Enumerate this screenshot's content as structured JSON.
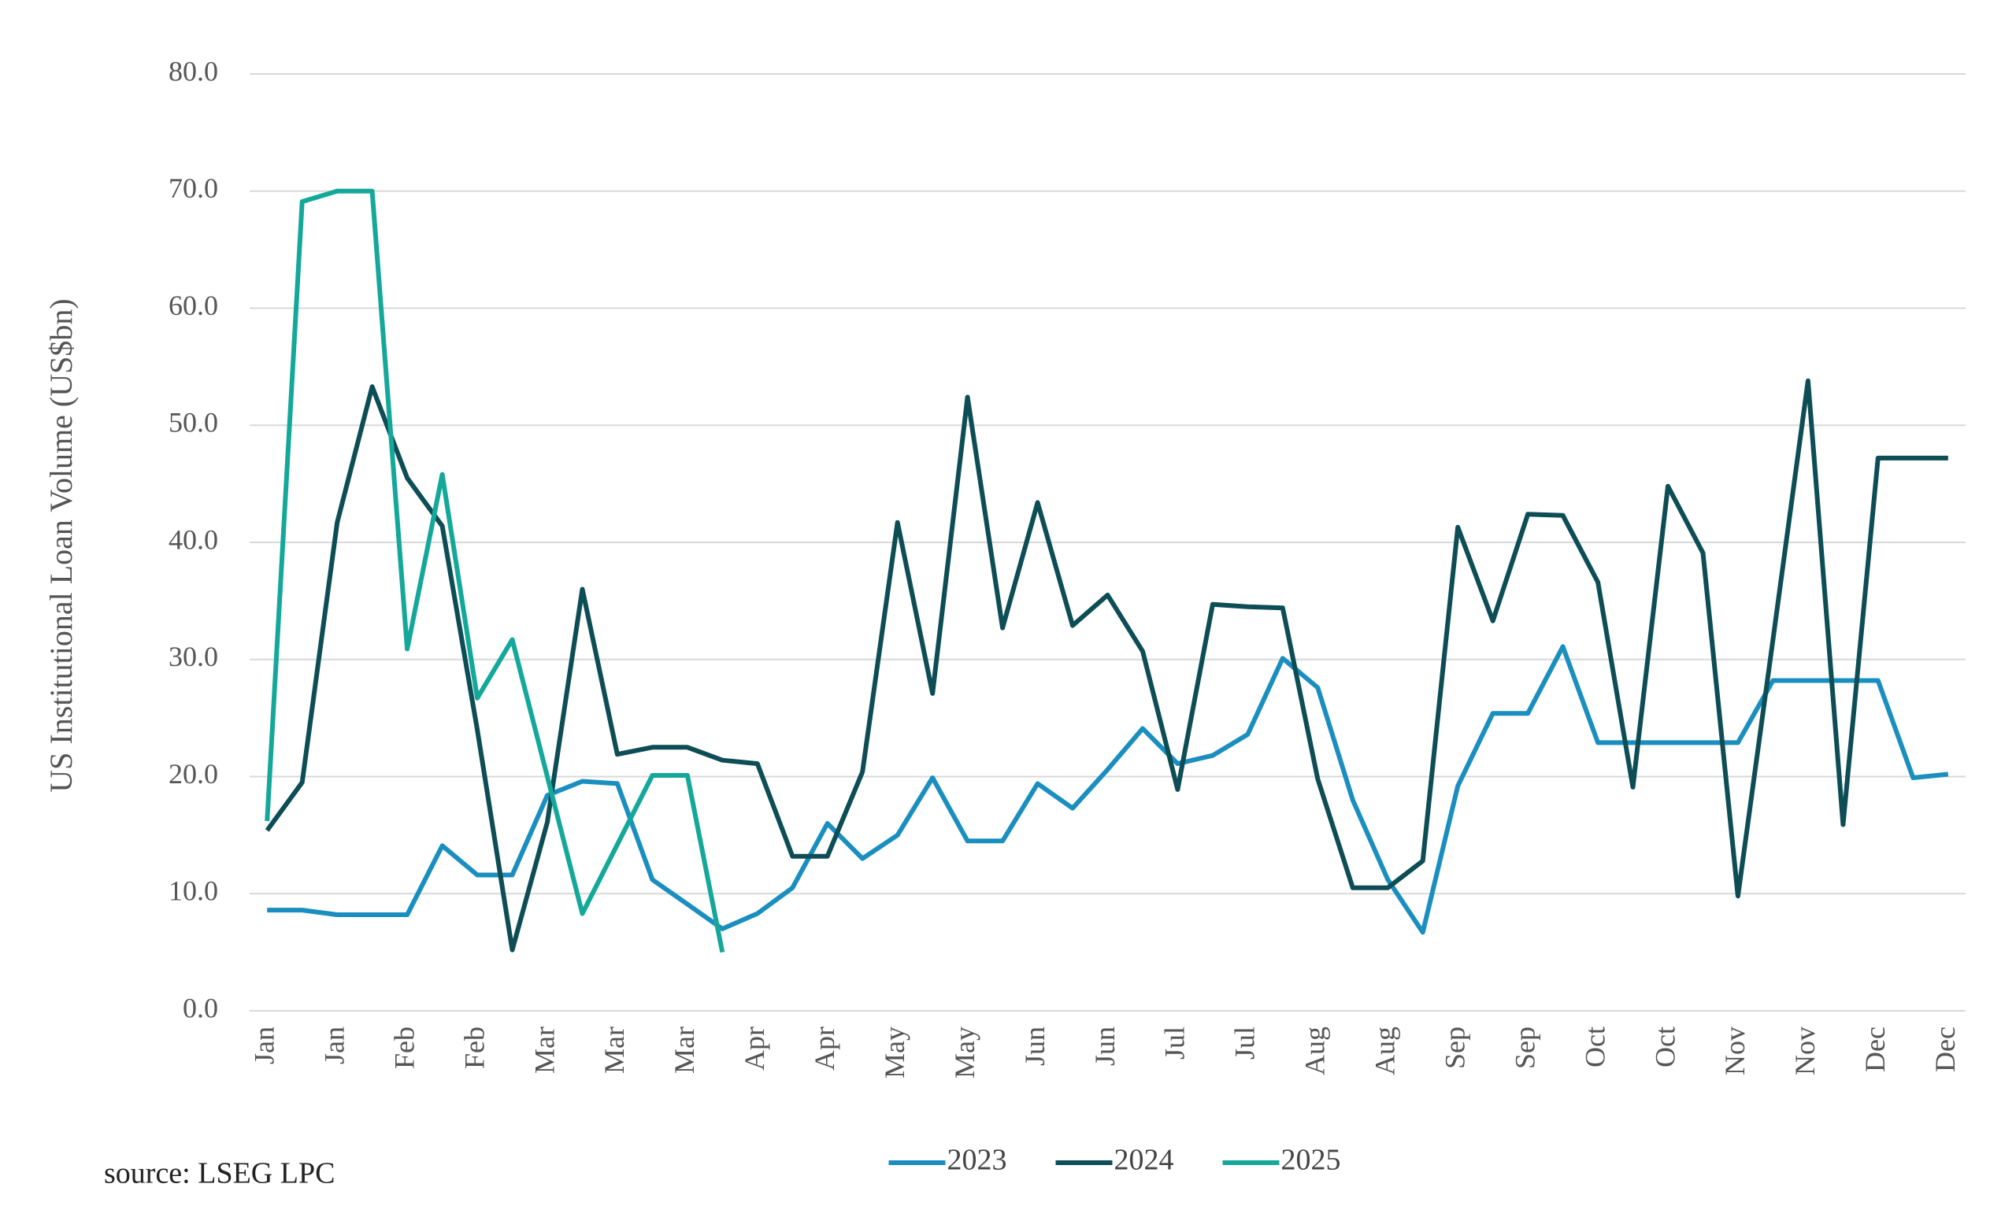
{
  "chart_data": {
    "type": "line",
    "y_label": "US Institutional Loan Volume (US$bn)",
    "source": "source:  LSEG LPC",
    "categories": [
      "Jan",
      null,
      "Jan",
      null,
      "Feb",
      null,
      "Feb",
      null,
      "Mar",
      null,
      "Mar",
      null,
      "Mar",
      null,
      "Apr",
      null,
      "Apr",
      null,
      "May",
      null,
      "May",
      null,
      "Jun",
      null,
      "Jun",
      null,
      "Jul",
      null,
      "Jul",
      null,
      "Aug",
      null,
      "Aug",
      null,
      "Sep",
      null,
      "Sep",
      null,
      "Oct",
      null,
      "Oct",
      null,
      "Nov",
      null,
      "Nov",
      null,
      "Dec",
      null,
      "Dec"
    ],
    "series": [
      {
        "name": "2023",
        "color": "#1a8fbf",
        "values": [
          8.6,
          8.6,
          8.2,
          8.2,
          8.2,
          14.1,
          11.6,
          11.6,
          18.4,
          19.6,
          19.4,
          11.2,
          9.1,
          7.0,
          8.3,
          10.5,
          16.0,
          13.0,
          15.0,
          19.9,
          14.5,
          14.5,
          19.4,
          17.3,
          20.6,
          24.1,
          21.1,
          21.8,
          23.6,
          30.1,
          27.6,
          18.0,
          11.2,
          6.7,
          19.2,
          25.4,
          25.4,
          31.1,
          22.9,
          22.9,
          22.9,
          22.9,
          22.9,
          28.2,
          28.2,
          28.2,
          28.2,
          19.9,
          20.2
        ]
      },
      {
        "name": "2024",
        "color": "#0d4d55",
        "values": [
          15.4,
          19.5,
          41.7,
          53.3,
          45.5,
          41.4,
          24.0,
          5.2,
          16.1,
          36.0,
          21.9,
          22.5,
          22.5,
          21.4,
          21.1,
          13.2,
          13.2,
          20.4,
          41.7,
          27.1,
          52.4,
          32.7,
          43.4,
          32.9,
          35.5,
          30.7,
          18.9,
          34.7,
          34.5,
          34.4,
          19.8,
          10.5,
          10.5,
          12.8,
          41.3,
          33.3,
          42.4,
          42.3,
          36.6,
          19.1,
          44.8,
          39.1,
          9.8,
          31.7,
          53.8,
          15.9,
          47.2,
          47.2,
          47.2
        ]
      },
      {
        "name": "2025",
        "color": "#14a89a",
        "values": [
          16.2,
          69.1,
          70.0,
          70.0,
          30.9,
          45.8,
          26.7,
          31.7,
          20.0,
          8.3,
          14.2,
          20.1,
          20.1,
          5.0,
          null,
          null,
          null,
          null,
          null,
          null,
          null,
          null,
          null,
          null,
          null,
          null,
          null,
          null,
          null,
          null,
          null,
          null,
          null,
          null,
          null,
          null,
          null,
          null,
          null,
          null,
          null,
          null,
          null,
          null,
          null,
          null,
          null,
          null,
          null
        ]
      }
    ],
    "ylim": [
      0,
      80
    ],
    "yticks": [
      {
        "value": 0,
        "label": "0.0"
      },
      {
        "value": 10,
        "label": "10.0"
      },
      {
        "value": 20,
        "label": "20.0"
      },
      {
        "value": 30,
        "label": "30.0"
      },
      {
        "value": 40,
        "label": "40.0"
      },
      {
        "value": 50,
        "label": "50.0"
      },
      {
        "value": 60,
        "label": "60.0"
      },
      {
        "value": 70,
        "label": "70.0"
      },
      {
        "value": 80,
        "label": "80.0"
      }
    ],
    "grid": true,
    "legend": "bottom"
  }
}
